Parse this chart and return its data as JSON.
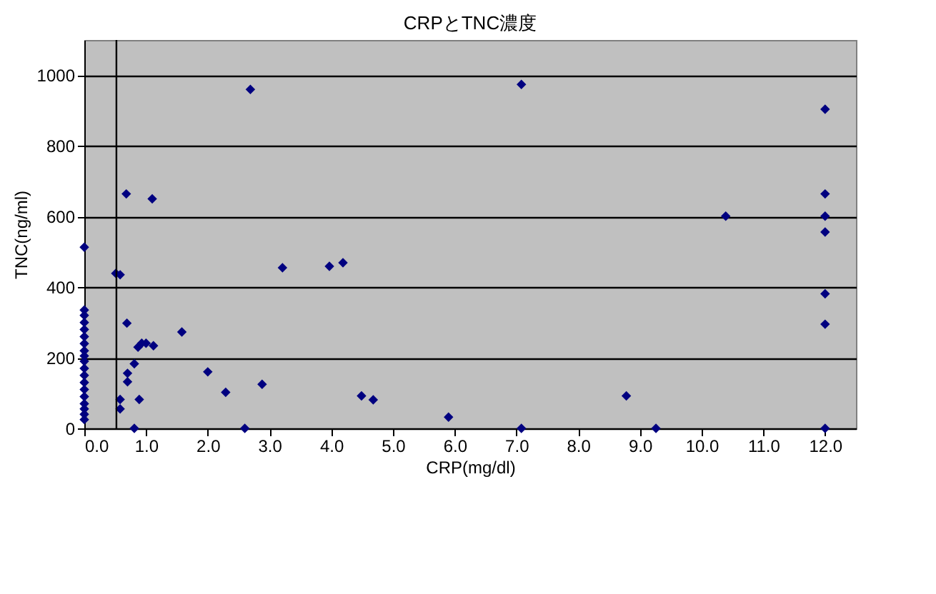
{
  "chart_data": {
    "type": "scatter",
    "title": "CRPとTNC濃度",
    "xlabel": "CRP(mg/dl)",
    "ylabel": "TNC(ng/ml)",
    "x": [
      0,
      0,
      0,
      0,
      0,
      0,
      0,
      0,
      0,
      0,
      0,
      0,
      0,
      0,
      0,
      0,
      0,
      0,
      0,
      0.51,
      0.58,
      0.68,
      1.1,
      0.69,
      0.81,
      0.7,
      0.7,
      0.58,
      0.58,
      0.89,
      0.81,
      0.87,
      0.93,
      1.0,
      1.12,
      1.58,
      2.0,
      2.29,
      2.6,
      2.88,
      2.69,
      3.21,
      3.97,
      4.19,
      4.49,
      4.68,
      5.9,
      7.08,
      7.08,
      8.78,
      9.26,
      10.39,
      12.0,
      12.0,
      12.0,
      12.0,
      12.0,
      12.0,
      12.0
    ],
    "series": [
      {
        "color": "#000080",
        "values": [
          513,
          335,
          320,
          300,
          280,
          260,
          240,
          220,
          205,
          190,
          170,
          150,
          130,
          110,
          90,
          70,
          55,
          40,
          25,
          439,
          435,
          664,
          650,
          298,
          183,
          156,
          132,
          82,
          55,
          82,
          0,
          230,
          241,
          241,
          234,
          273,
          160,
          102,
          0,
          125,
          960,
          455,
          459,
          469,
          92,
          81,
          32,
          0,
          974,
          92,
          0,
          601,
          904,
          664,
          601,
          556,
          381,
          295,
          0
        ]
      }
    ],
    "xlim": [
      0,
      12.5
    ],
    "ylim": [
      0,
      1100
    ],
    "xticks": [
      {
        "value": 0,
        "label": "0.0"
      },
      {
        "value": 1,
        "label": "1.0"
      },
      {
        "value": 2,
        "label": "2.0"
      },
      {
        "value": 3,
        "label": "3.0"
      },
      {
        "value": 4,
        "label": "4.0"
      },
      {
        "value": 5,
        "label": "5.0"
      },
      {
        "value": 6,
        "label": "6.0"
      },
      {
        "value": 7,
        "label": "7.0"
      },
      {
        "value": 8,
        "label": "8.0"
      },
      {
        "value": 9,
        "label": "9.0"
      },
      {
        "value": 10,
        "label": "10.0"
      },
      {
        "value": 11,
        "label": "11.0"
      },
      {
        "value": 12,
        "label": "12.0"
      }
    ],
    "yticks": [
      0,
      200,
      400,
      600,
      800,
      1000
    ],
    "ref_lines": [
      {
        "axis": "x",
        "value": 0.52,
        "color": "#000000"
      }
    ],
    "grid": "y",
    "marker": "diamond"
  }
}
